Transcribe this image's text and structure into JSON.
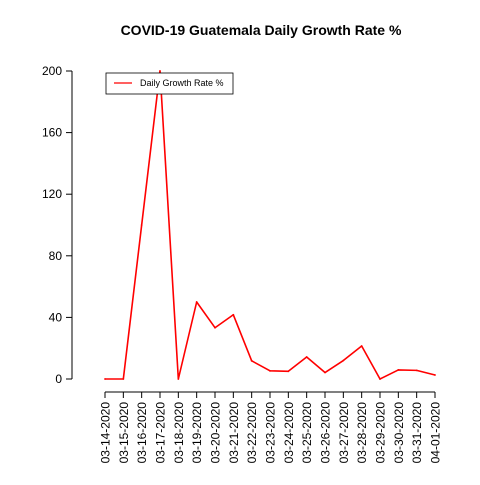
{
  "chart_data": {
    "type": "line",
    "title": "COVID-19 Guatemala Daily Growth Rate %",
    "xlabel": "",
    "ylabel": "",
    "x": [
      "03-14-2020",
      "03-15-2020",
      "03-16-2020",
      "03-17-2020",
      "03-18-2020",
      "03-19-2020",
      "03-20-2020",
      "03-21-2020",
      "03-22-2020",
      "03-23-2020",
      "03-24-2020",
      "03-25-2020",
      "03-26-2020",
      "03-27-2020",
      "03-28-2020",
      "03-29-2020",
      "03-30-2020",
      "03-31-2020",
      "04-01-2020"
    ],
    "series": [
      {
        "name": "Daily Growth Rate %",
        "color": "#ff0000",
        "values": [
          0,
          0,
          100,
          200,
          0,
          50,
          33.3,
          41.7,
          11.8,
          5.3,
          5.0,
          14.3,
          4.2,
          12.0,
          21.4,
          0,
          5.9,
          5.6,
          2.6
        ]
      }
    ],
    "ylim": [
      0,
      200
    ],
    "yticks": [
      0,
      40,
      80,
      120,
      160,
      200
    ],
    "grid": false,
    "legend_position": "top-left"
  }
}
